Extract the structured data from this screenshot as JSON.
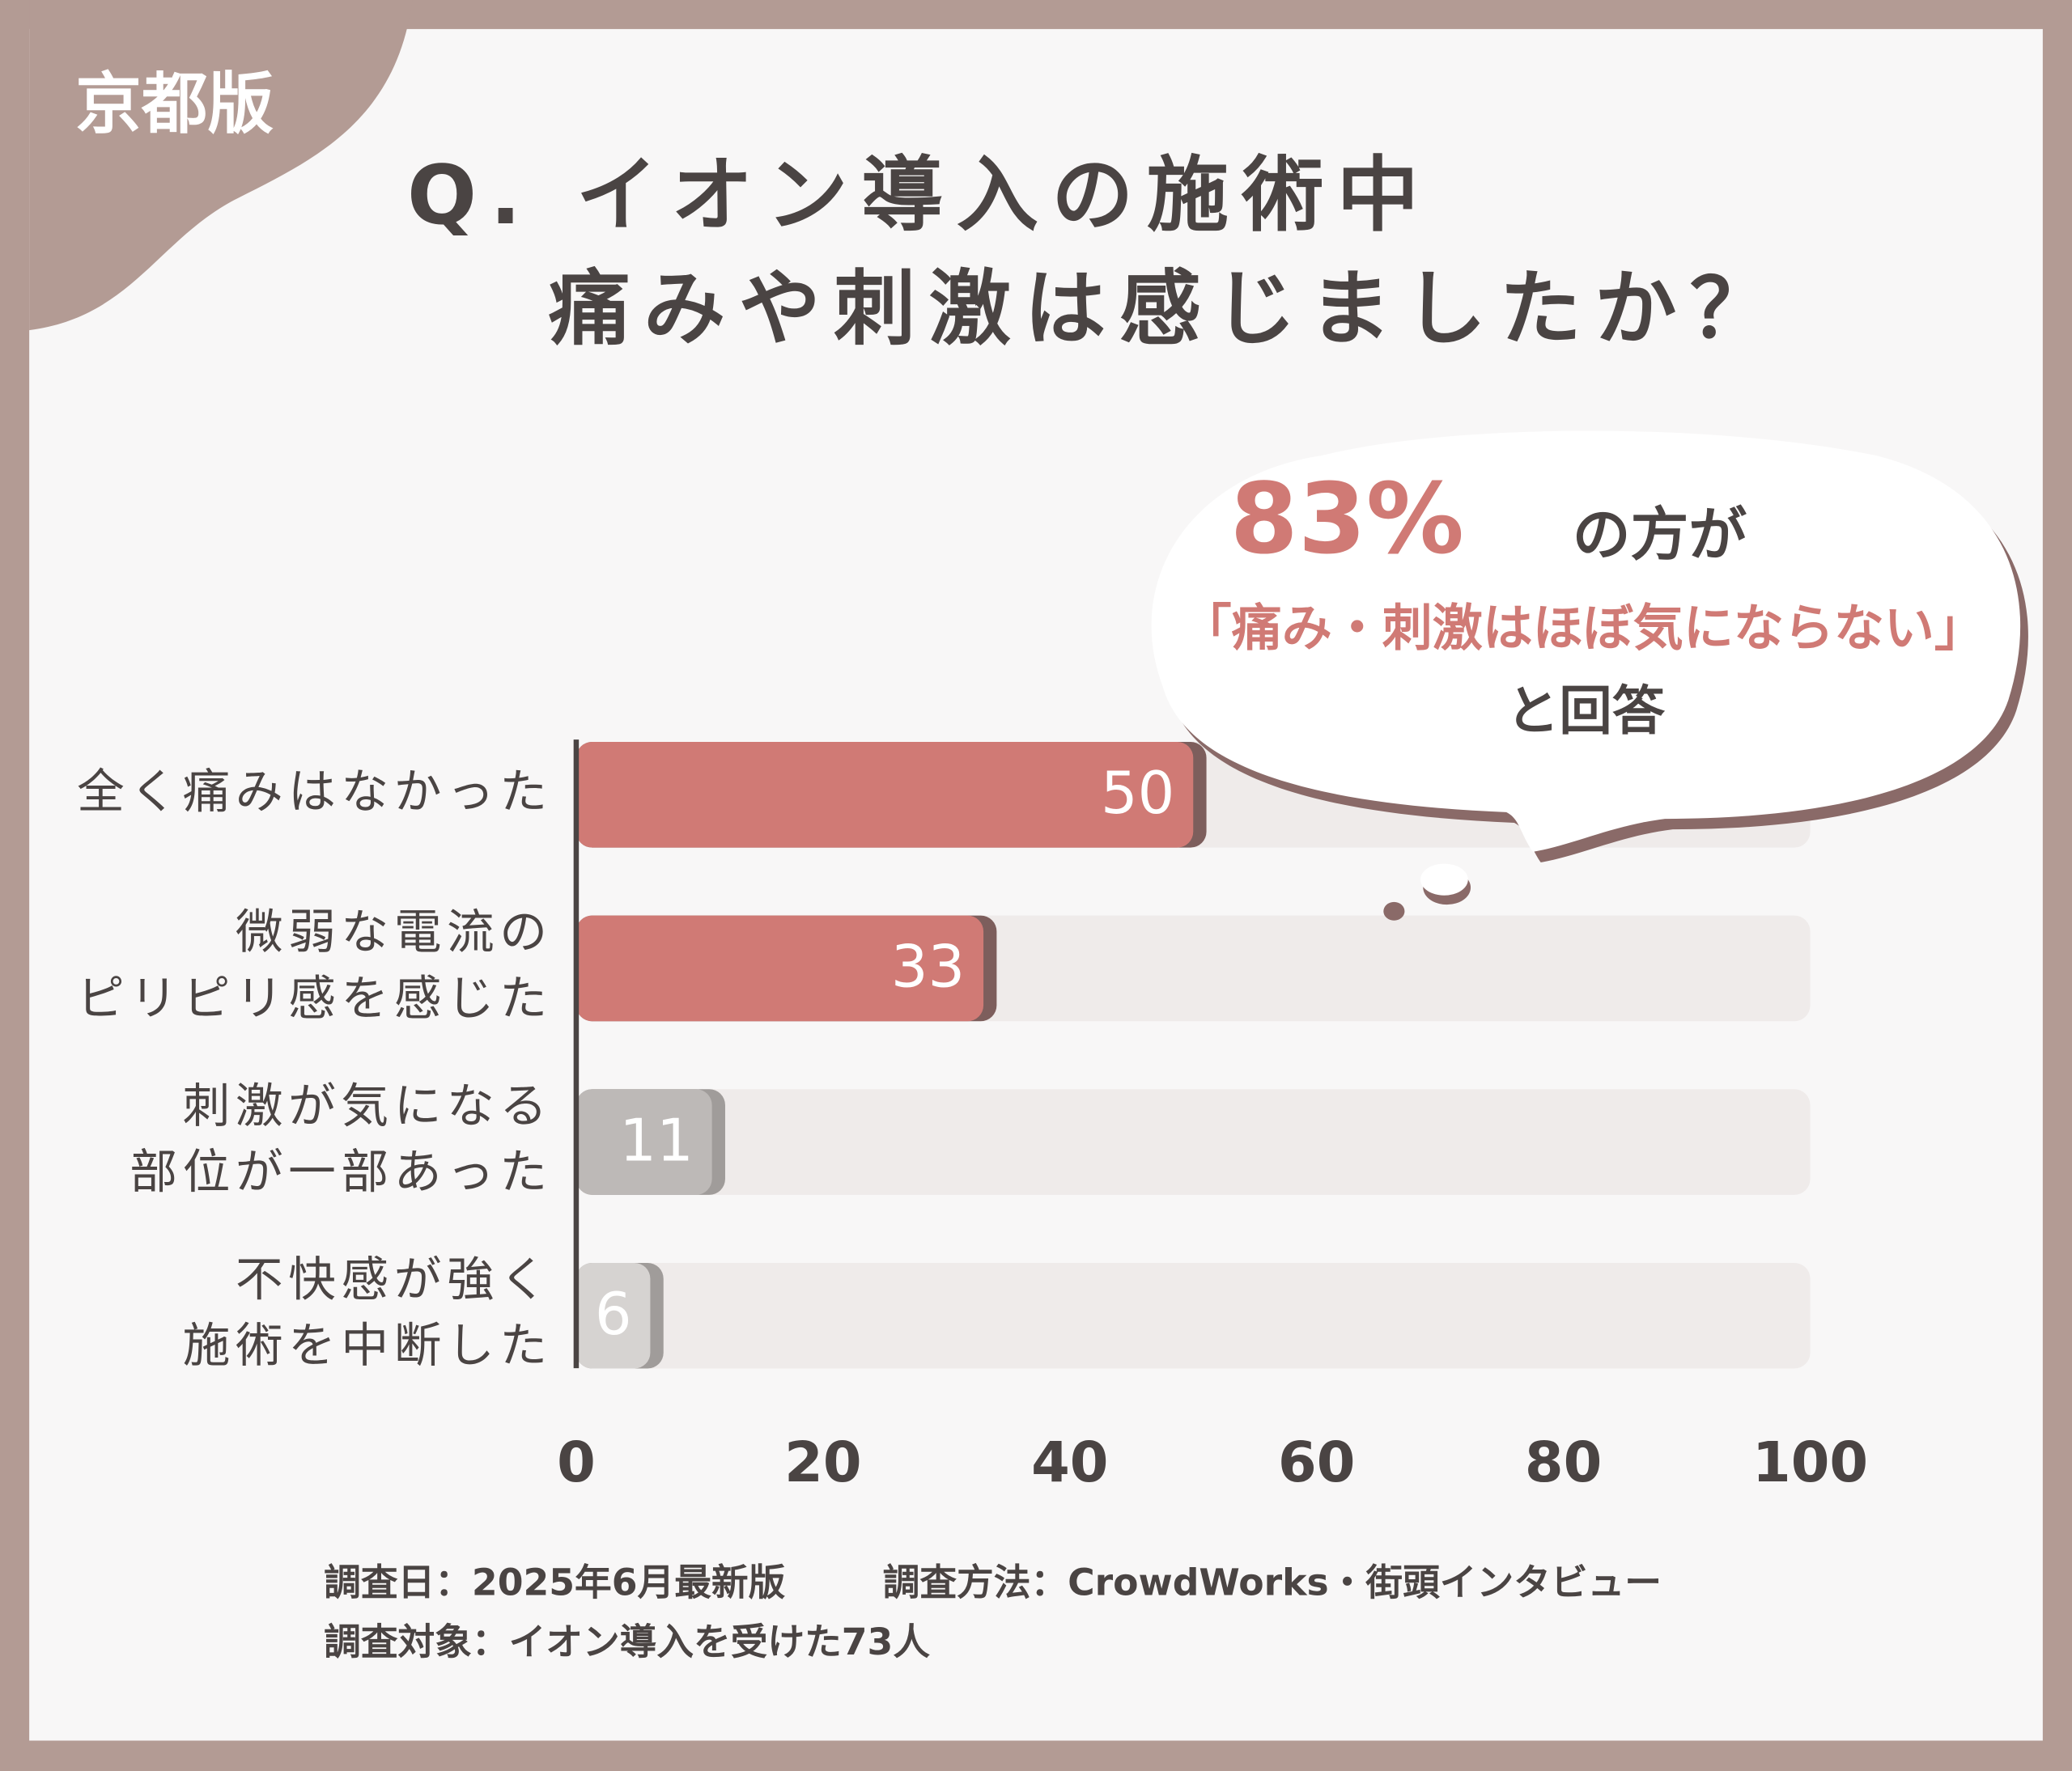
{
  "badge": "京都版",
  "chart_data": {
    "type": "bar",
    "orientation": "horizontal",
    "title": [
      "Q. イオン導入の施術中",
      "痛みや刺激は感じましたか？"
    ],
    "categories": [
      [
        "全く痛みはなかった"
      ],
      [
        "微弱な電流の",
        "ピリピリ感を感じた"
      ],
      [
        "刺激が気になる",
        "部位が一部あった"
      ],
      [
        "不快感が強く",
        "施術を中断した"
      ]
    ],
    "values": [
      50,
      33,
      11,
      6
    ],
    "colors": [
      "#d07a75",
      "#d07a75",
      "#bdb9b7",
      "#d6d3d1"
    ],
    "xlim": [
      0,
      100
    ],
    "xticks": [
      0,
      20,
      40,
      60,
      80,
      100
    ],
    "callout": {
      "highlight": "83%",
      "text": "の方が",
      "quote": "「痛み・刺激はほぼ気にならない」",
      "tail": "と回答"
    }
  },
  "footer": [
    "調査日：2025年6月最新版",
    "調査方法：CrowdWorks・街頭インタビュー",
    "調査対象：イオン導入を受けた73人"
  ]
}
